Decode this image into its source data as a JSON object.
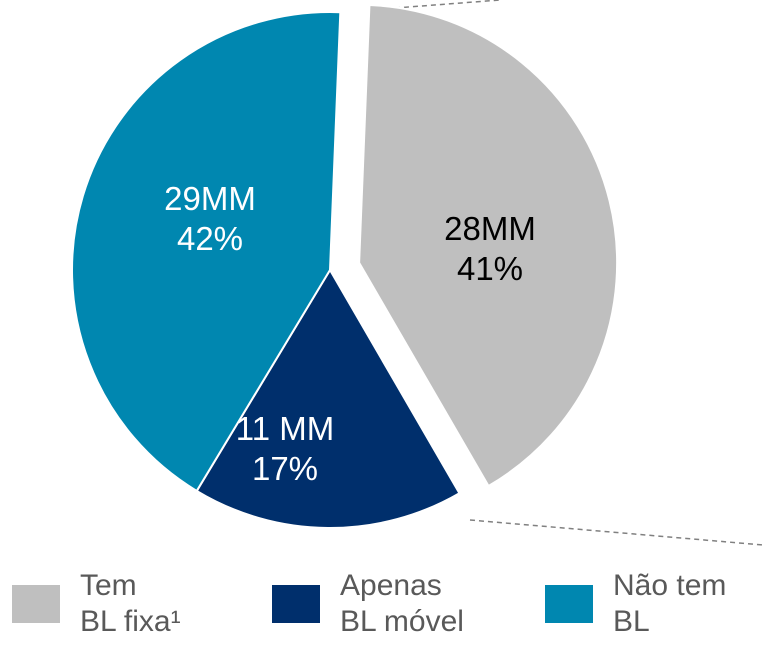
{
  "chart_data": {
    "type": "pie",
    "categories": [
      "Tem\nBL fixa¹",
      "Apenas\nBL móvel",
      "Não tem\nBL"
    ],
    "values": [
      41,
      17,
      42
    ],
    "value_labels": [
      "41%",
      "17%",
      "42%"
    ],
    "counts": [
      28,
      11,
      29
    ],
    "count_labels": [
      "28MM",
      "11 MM",
      "29MM"
    ],
    "colors": [
      "#bfbfbf",
      "#002f6c",
      "#0087b0"
    ],
    "label_colors": [
      "#000000",
      "#ffffff",
      "#ffffff"
    ],
    "exploded": [
      true,
      false,
      false
    ],
    "legend": "bottom"
  }
}
